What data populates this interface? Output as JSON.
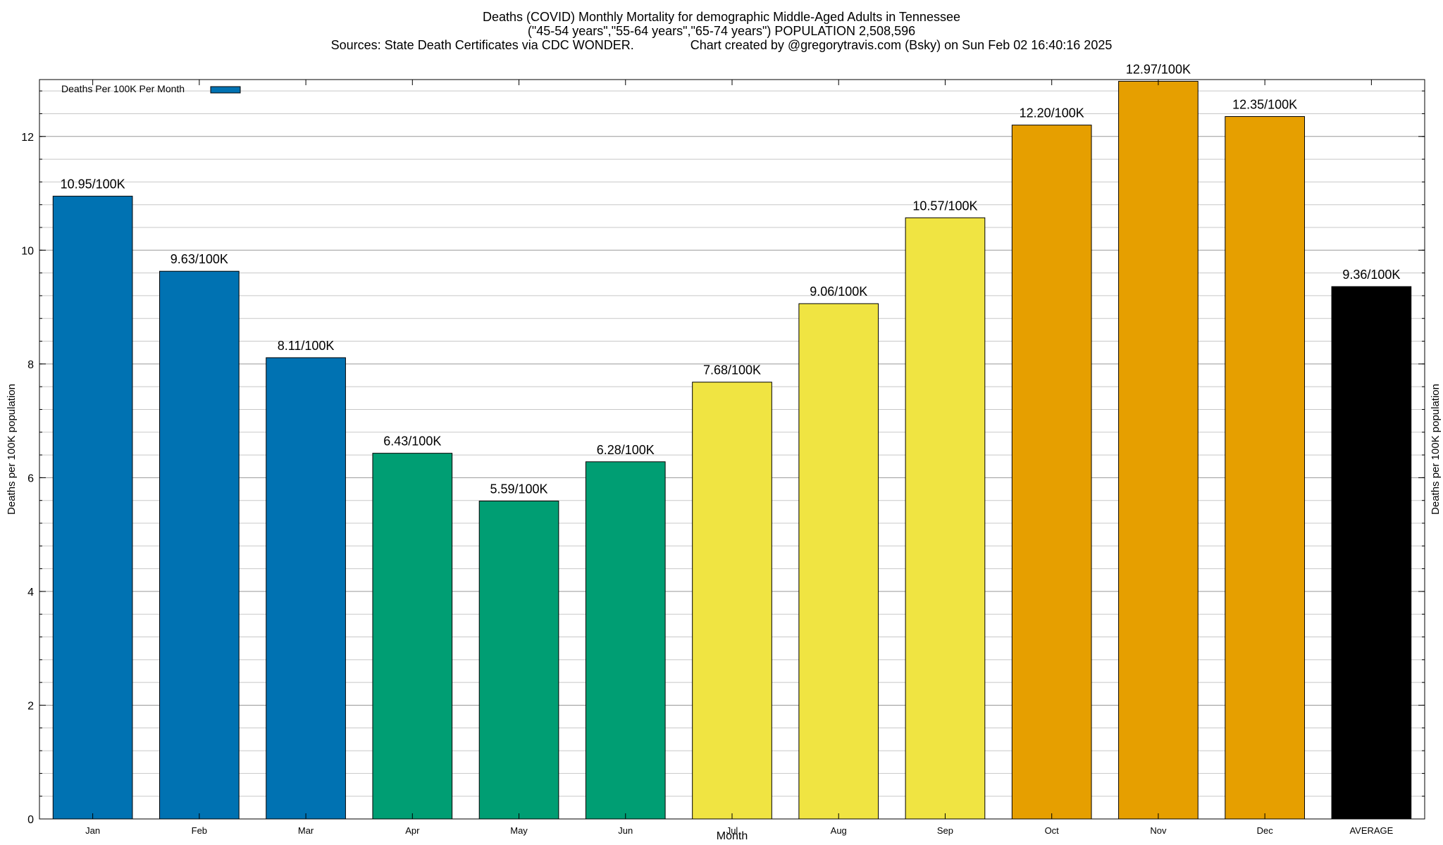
{
  "title": {
    "line1": "Deaths (COVID) Monthly Mortality for demographic Middle-Aged Adults in Tennessee",
    "line2": "(\"45-54 years\",\"55-64 years\",\"65-74 years\") POPULATION 2,508,596",
    "line3": "Sources: State Death Certificates via CDC WONDER.                Chart created by @gregorytravis.com (Bsky) on Sun Feb 02 16:40:16 2025"
  },
  "chart_data": {
    "type": "bar",
    "xlabel": "Month",
    "ylabel": "Deaths per 100K population",
    "ylabel_right": "Deaths per 100K population",
    "ylim": [
      0,
      13
    ],
    "yticks": [
      0,
      2,
      4,
      6,
      8,
      10,
      12
    ],
    "grid": true,
    "legend": {
      "label": "Deaths Per 100K Per Month",
      "placement": "top-left",
      "color": "#0072b2"
    },
    "categories": [
      "Jan",
      "Feb",
      "Mar",
      "Apr",
      "May",
      "Jun",
      "Jul",
      "Aug",
      "Sep",
      "Oct",
      "Nov",
      "Dec",
      "AVERAGE"
    ],
    "values": [
      10.95,
      9.63,
      8.11,
      6.43,
      5.59,
      6.28,
      7.68,
      9.06,
      10.57,
      12.2,
      12.97,
      12.35,
      9.36
    ],
    "value_labels": [
      "10.95/100K",
      "9.63/100K",
      "8.11/100K",
      "6.43/100K",
      "5.59/100K",
      "6.28/100K",
      "7.68/100K",
      "9.06/100K",
      "10.57/100K",
      "12.20/100K",
      "12.97/100K",
      "12.35/100K",
      "9.36/100K"
    ],
    "colors": [
      "#0072b2",
      "#0072b2",
      "#0072b2",
      "#009e73",
      "#009e73",
      "#009e73",
      "#f0e442",
      "#f0e442",
      "#f0e442",
      "#e69f00",
      "#e69f00",
      "#e69f00",
      "#000000"
    ]
  }
}
